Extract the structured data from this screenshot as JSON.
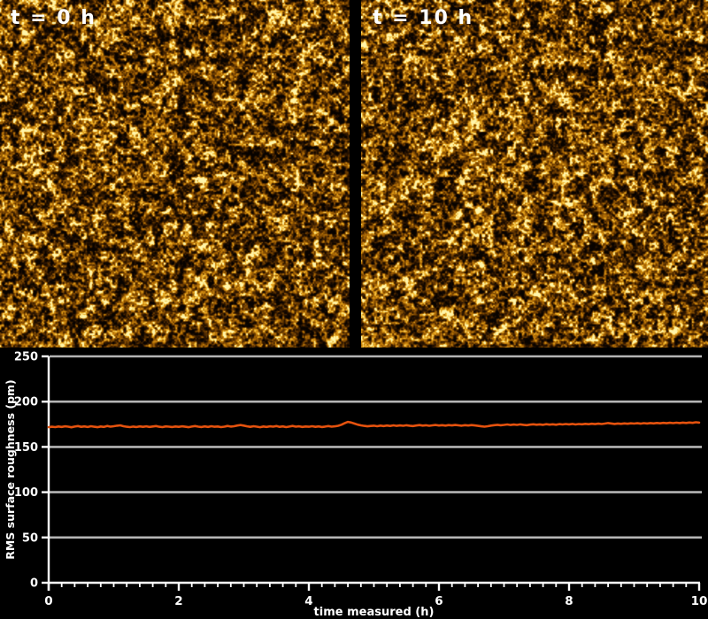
{
  "figure": {
    "background": "#000000",
    "text_color": "#ffffff",
    "panels": [
      {
        "label": "t = 0 h"
      },
      {
        "label": "t = 10 h"
      }
    ],
    "afm_palette": [
      {
        "v": 0.0,
        "rgb": [
          8,
          3,
          0
        ]
      },
      {
        "v": 0.28,
        "rgb": [
          46,
          22,
          0
        ]
      },
      {
        "v": 0.52,
        "rgb": [
          120,
          68,
          2
        ]
      },
      {
        "v": 0.72,
        "rgb": [
          190,
          120,
          8
        ]
      },
      {
        "v": 0.86,
        "rgb": [
          240,
          180,
          40
        ]
      },
      {
        "v": 1.0,
        "rgb": [
          255,
          245,
          170
        ]
      }
    ]
  },
  "chart_data": {
    "type": "line",
    "title": "",
    "xlabel": "time measured (h)",
    "ylabel": "RMS surface roughness (pm)",
    "xlim": [
      0,
      10
    ],
    "ylim": [
      0,
      250
    ],
    "x_major_ticks": [
      0,
      2,
      4,
      6,
      8,
      10
    ],
    "x_minor_tick_step": 0.2,
    "y_ticks": [
      0,
      50,
      100,
      150,
      200,
      250
    ],
    "grid": "horizontal",
    "grid_color": "#b5b5b5",
    "axis_color": "#ffffff",
    "legend": "none",
    "series": [
      {
        "name": "RMS surface roughness",
        "color": "#e5520e",
        "t_start": 0,
        "t_step": 0.05,
        "values": [
          171.8,
          172.3,
          171.9,
          172.6,
          172.1,
          172.8,
          172.4,
          171.7,
          172.5,
          173.0,
          172.2,
          172.7,
          172.0,
          172.9,
          172.3,
          171.8,
          172.6,
          172.1,
          173.1,
          172.4,
          172.9,
          173.4,
          173.8,
          172.9,
          172.3,
          171.9,
          172.5,
          172.0,
          172.7,
          172.2,
          172.8,
          172.1,
          172.6,
          173.0,
          172.3,
          171.9,
          172.7,
          172.4,
          172.0,
          172.6,
          172.2,
          172.8,
          172.3,
          171.8,
          172.5,
          173.0,
          172.4,
          172.0,
          172.7,
          172.1,
          172.9,
          172.3,
          172.6,
          171.9,
          172.4,
          173.1,
          172.5,
          172.9,
          173.6,
          174.2,
          173.5,
          172.8,
          172.2,
          172.9,
          172.4,
          171.8,
          172.6,
          172.1,
          172.8,
          172.4,
          173.0,
          172.2,
          172.7,
          171.9,
          172.5,
          173.1,
          172.4,
          172.8,
          172.1,
          172.6,
          172.3,
          172.9,
          172.2,
          172.7,
          172.0,
          172.5,
          173.0,
          172.4,
          172.8,
          173.3,
          174.5,
          176.2,
          177.6,
          177.0,
          175.8,
          174.6,
          173.8,
          173.2,
          172.8,
          173.1,
          173.4,
          172.9,
          173.5,
          173.0,
          173.6,
          173.1,
          173.8,
          173.2,
          173.7,
          173.3,
          173.9,
          173.4,
          173.0,
          173.6,
          174.1,
          173.5,
          173.9,
          173.3,
          173.8,
          174.2,
          173.6,
          174.0,
          173.5,
          174.1,
          173.7,
          174.2,
          173.8,
          173.4,
          174.0,
          173.6,
          174.1,
          173.7,
          173.2,
          172.8,
          172.4,
          172.9,
          173.5,
          174.0,
          174.4,
          173.9,
          174.3,
          174.8,
          174.2,
          174.7,
          174.3,
          174.9,
          174.4,
          174.0,
          174.6,
          175.0,
          174.5,
          174.9,
          174.4,
          175.1,
          174.6,
          175.0,
          174.5,
          175.2,
          174.8,
          175.3,
          174.9,
          175.4,
          174.8,
          175.3,
          175.0,
          175.5,
          175.1,
          175.6,
          175.2,
          175.7,
          175.3,
          175.8,
          176.4,
          175.9,
          175.4,
          175.9,
          175.5,
          176.0,
          175.6,
          176.1,
          175.8,
          176.2,
          175.7,
          176.3,
          175.9,
          176.4,
          176.0,
          176.5,
          176.1,
          176.6,
          176.2,
          176.7,
          176.3,
          176.8,
          176.4,
          176.9,
          176.5,
          177.0,
          176.6,
          177.2,
          176.9
        ]
      }
    ]
  }
}
